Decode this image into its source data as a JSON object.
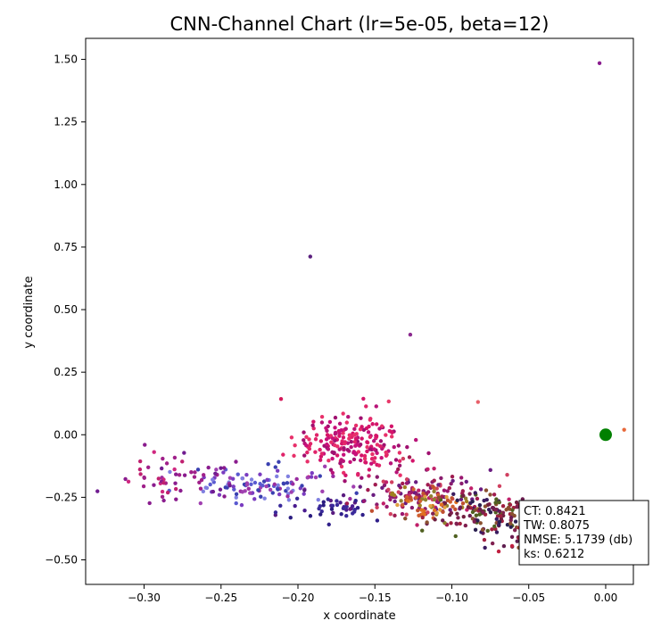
{
  "chart_data": {
    "type": "scatter",
    "title": "CNN-Channel Chart (lr=5e-05, beta=12)",
    "xlabel": "x coordinate",
    "ylabel": "y coordinate",
    "xlim": [
      -0.338,
      0.018
    ],
    "ylim": [
      -0.598,
      1.584
    ],
    "x_ticks": [
      -0.3,
      -0.25,
      -0.2,
      -0.15,
      -0.1,
      -0.05,
      0.0
    ],
    "x_tick_labels": [
      "−0.30",
      "−0.25",
      "−0.20",
      "−0.15",
      "−0.10",
      "−0.05",
      "0.00"
    ],
    "y_ticks": [
      -0.5,
      -0.25,
      0.0,
      0.25,
      0.5,
      0.75,
      1.0,
      1.25,
      1.5
    ],
    "y_tick_labels": [
      "−0.50",
      "−0.25",
      "0.00",
      "0.25",
      "0.50",
      "0.75",
      "1.00",
      "1.25",
      "1.50"
    ],
    "grid": false,
    "reference_point": {
      "x": 0.0,
      "y": 0.0,
      "color": "#008000"
    },
    "outliers": [
      {
        "x": -0.004,
        "y": 1.485,
        "color": "#8a1c8e"
      },
      {
        "x": -0.192,
        "y": 0.712,
        "color": "#5a1f7e"
      },
      {
        "x": -0.127,
        "y": 0.4,
        "color": "#8b2a8f"
      },
      {
        "x": -0.211,
        "y": 0.143,
        "color": "#d41a5a"
      },
      {
        "x": -0.141,
        "y": 0.133,
        "color": "#e83a6a"
      },
      {
        "x": -0.083,
        "y": 0.131,
        "color": "#e8606a"
      },
      {
        "x": 0.012,
        "y": 0.02,
        "color": "#e8683a"
      }
    ],
    "clusters": [
      {
        "cx": -0.165,
        "cy": -0.03,
        "sx": 0.018,
        "sy": 0.06,
        "n": 210,
        "colors": [
          "#d4146a",
          "#c8107a",
          "#e0246a",
          "#b81478",
          "#e8306a",
          "#a01070"
        ]
      },
      {
        "cx": -0.22,
        "cy": -0.2,
        "sx": 0.022,
        "sy": 0.035,
        "n": 110,
        "colors": [
          "#9a2ca0",
          "#7a3cc0",
          "#5a5ad0",
          "#8080e0",
          "#3a40b0",
          "#a040b0"
        ]
      },
      {
        "cx": -0.28,
        "cy": -0.18,
        "sx": 0.02,
        "sy": 0.04,
        "n": 55,
        "colors": [
          "#8a1c8e",
          "#a0208a",
          "#c02070",
          "#701c90",
          "#d02880"
        ]
      },
      {
        "cx": -0.18,
        "cy": -0.29,
        "sx": 0.02,
        "sy": 0.025,
        "n": 45,
        "colors": [
          "#2a1c80",
          "#30208a",
          "#4a1c90",
          "#3a2a9a",
          "#5a1c80"
        ]
      },
      {
        "cx": -0.12,
        "cy": -0.24,
        "sx": 0.018,
        "sy": 0.05,
        "n": 140,
        "colors": [
          "#8a1c6e",
          "#a01c50",
          "#c0206a",
          "#6a1c80",
          "#d04060",
          "#9a1870"
        ]
      },
      {
        "cx": -0.115,
        "cy": -0.27,
        "sx": 0.015,
        "sy": 0.03,
        "n": 65,
        "colors": [
          "#d06030",
          "#e07020",
          "#a08020",
          "#c05030",
          "#e0a040",
          "#908030"
        ]
      },
      {
        "cx": -0.075,
        "cy": -0.32,
        "sx": 0.02,
        "sy": 0.05,
        "n": 160,
        "colors": [
          "#3a1c60",
          "#6a1c50",
          "#802050",
          "#506020",
          "#702040",
          "#a02040",
          "#2a2050",
          "#8a5030"
        ]
      },
      {
        "cx": -0.048,
        "cy": -0.4,
        "sx": 0.01,
        "sy": 0.05,
        "n": 25,
        "colors": [
          "#802040",
          "#a02040",
          "#602050",
          "#c02040"
        ]
      }
    ],
    "annotation": {
      "lines": [
        "CT: 0.8421",
        "TW: 0.8075",
        "NMSE: 5.1739 (db)",
        "ks: 0.6212"
      ],
      "position": "lower-right"
    }
  }
}
